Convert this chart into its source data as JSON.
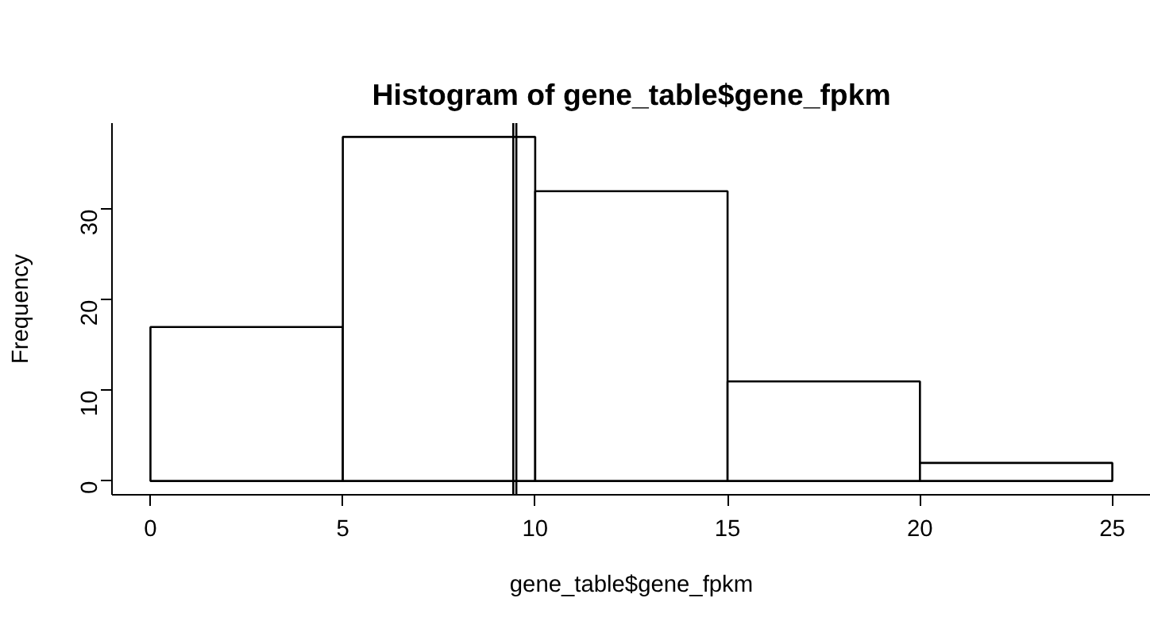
{
  "chart_data": {
    "type": "histogram",
    "title": "Histogram of gene_table$gene_fpkm",
    "xlabel": "gene_table$gene_fpkm",
    "ylabel": "Frequency",
    "bins": [
      0,
      5,
      10,
      15,
      20,
      25
    ],
    "values": [
      17,
      38,
      32,
      11,
      2
    ],
    "color": "#ffffff",
    "xlim": [
      -1,
      26
    ],
    "xticks": [
      0,
      5,
      10,
      15,
      20,
      25
    ],
    "ylim": [
      -1.52,
      39.52
    ],
    "yticks": [
      0,
      10,
      20,
      30
    ],
    "grid": false,
    "ref_lines": [
      {
        "axis": "x",
        "value": 9.43,
        "color": "#000000"
      },
      {
        "axis": "x",
        "value": 9.51,
        "color": "#000000"
      }
    ]
  }
}
